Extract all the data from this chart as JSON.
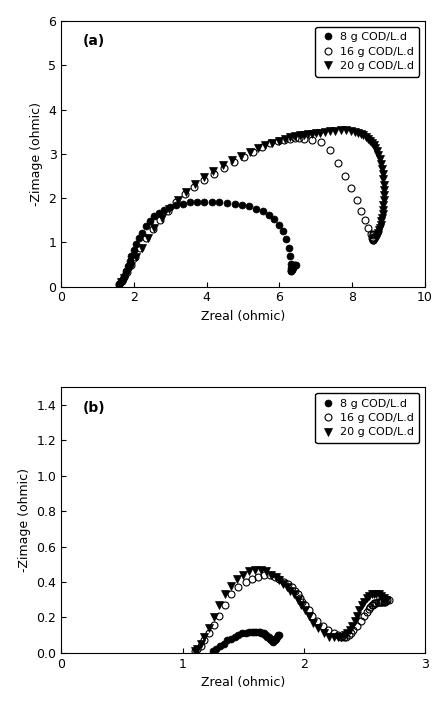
{
  "panel_a": {
    "label": "(a)",
    "xlabel": "Zreal (ohmic)",
    "ylabel": "-Zimage (ohmic)",
    "xlim": [
      0,
      10
    ],
    "ylim": [
      0,
      6
    ],
    "xticks": [
      0,
      2,
      4,
      6,
      8,
      10
    ],
    "yticks": [
      0,
      1,
      2,
      3,
      4,
      5,
      6
    ],
    "series": [
      {
        "label": "8 g COD/L.d",
        "marker": "o",
        "fillstyle": "full",
        "color": "black",
        "markersize": 5,
        "zreal": [
          1.58,
          1.62,
          1.66,
          1.7,
          1.74,
          1.78,
          1.83,
          1.88,
          1.93,
          1.99,
          2.06,
          2.13,
          2.22,
          2.32,
          2.43,
          2.55,
          2.68,
          2.83,
          2.99,
          3.16,
          3.34,
          3.53,
          3.73,
          3.93,
          4.14,
          4.35,
          4.56,
          4.77,
          4.97,
          5.17,
          5.36,
          5.54,
          5.71,
          5.86,
          5.99,
          6.1,
          6.19,
          6.26,
          6.3,
          6.32,
          6.33,
          6.32,
          6.32,
          6.33,
          6.35,
          6.37,
          6.39,
          6.41,
          6.43,
          6.45
        ],
        "zimag": [
          0.04,
          0.07,
          0.12,
          0.18,
          0.26,
          0.35,
          0.46,
          0.57,
          0.69,
          0.82,
          0.96,
          1.09,
          1.22,
          1.36,
          1.48,
          1.59,
          1.67,
          1.74,
          1.79,
          1.84,
          1.87,
          1.9,
          1.91,
          1.92,
          1.92,
          1.91,
          1.89,
          1.87,
          1.84,
          1.81,
          1.76,
          1.7,
          1.62,
          1.52,
          1.4,
          1.25,
          1.07,
          0.87,
          0.68,
          0.52,
          0.42,
          0.37,
          0.35,
          0.35,
          0.38,
          0.42,
          0.46,
          0.48,
          0.49,
          0.48
        ]
      },
      {
        "label": "16 g COD/L.d",
        "marker": "o",
        "fillstyle": "none",
        "color": "black",
        "markersize": 5,
        "zreal": [
          1.6,
          1.66,
          1.73,
          1.81,
          1.91,
          2.03,
          2.17,
          2.33,
          2.51,
          2.71,
          2.93,
          3.16,
          3.41,
          3.66,
          3.93,
          4.2,
          4.48,
          4.75,
          5.02,
          5.28,
          5.52,
          5.75,
          5.95,
          6.13,
          6.29,
          6.43,
          6.55,
          6.67,
          6.9,
          7.15,
          7.4,
          7.62,
          7.8,
          7.97,
          8.12,
          8.25,
          8.35,
          8.44,
          8.51,
          8.55,
          8.57,
          8.58,
          8.58,
          8.57,
          8.57,
          8.57,
          8.58
        ],
        "zimag": [
          0.06,
          0.12,
          0.21,
          0.33,
          0.49,
          0.67,
          0.88,
          1.09,
          1.3,
          1.51,
          1.71,
          1.9,
          2.08,
          2.24,
          2.4,
          2.54,
          2.68,
          2.81,
          2.93,
          3.05,
          3.16,
          3.25,
          3.3,
          3.32,
          3.34,
          3.35,
          3.35,
          3.34,
          3.32,
          3.27,
          3.08,
          2.8,
          2.5,
          2.22,
          1.95,
          1.7,
          1.5,
          1.32,
          1.18,
          1.1,
          1.05,
          1.05,
          1.07,
          1.1,
          1.13,
          1.16,
          1.18
        ]
      },
      {
        "label": "20 g COD/L.d",
        "marker": "v",
        "fillstyle": "full",
        "color": "black",
        "markersize": 6,
        "zreal": [
          1.63,
          1.72,
          1.82,
          1.93,
          2.06,
          2.21,
          2.38,
          2.56,
          2.76,
          2.97,
          3.2,
          3.43,
          3.68,
          3.93,
          4.18,
          4.44,
          4.69,
          4.94,
          5.18,
          5.4,
          5.61,
          5.8,
          5.98,
          6.14,
          6.29,
          6.43,
          6.56,
          6.68,
          6.79,
          6.89,
          7.0,
          7.12,
          7.25,
          7.39,
          7.54,
          7.69,
          7.83,
          7.96,
          8.07,
          8.16,
          8.24,
          8.31,
          8.38,
          8.44,
          8.49,
          8.54,
          8.59,
          8.64,
          8.68,
          8.72,
          8.76,
          8.79,
          8.82,
          8.84,
          8.86,
          8.87,
          8.87,
          8.87,
          8.87,
          8.86,
          8.85,
          8.84,
          8.82,
          8.8,
          8.78,
          8.76,
          8.74,
          8.72,
          8.7,
          8.68
        ],
        "zimag": [
          0.1,
          0.19,
          0.31,
          0.47,
          0.66,
          0.88,
          1.1,
          1.33,
          1.55,
          1.76,
          1.96,
          2.14,
          2.31,
          2.47,
          2.61,
          2.74,
          2.85,
          2.95,
          3.04,
          3.12,
          3.19,
          3.25,
          3.3,
          3.34,
          3.37,
          3.4,
          3.42,
          3.43,
          3.44,
          3.45,
          3.46,
          3.47,
          3.49,
          3.51,
          3.52,
          3.53,
          3.53,
          3.52,
          3.5,
          3.48,
          3.45,
          3.42,
          3.38,
          3.34,
          3.3,
          3.25,
          3.19,
          3.13,
          3.06,
          2.97,
          2.88,
          2.77,
          2.66,
          2.54,
          2.42,
          2.3,
          2.18,
          2.06,
          1.95,
          1.84,
          1.74,
          1.64,
          1.55,
          1.47,
          1.4,
          1.33,
          1.27,
          1.22,
          1.17,
          1.12
        ]
      }
    ]
  },
  "panel_b": {
    "label": "(b)",
    "xlabel": "Zreal (ohmic)",
    "ylabel": "-Zimage (ohmic)",
    "xlim": [
      0,
      3
    ],
    "ylim": [
      0,
      1.5
    ],
    "xticks": [
      0,
      1,
      2,
      3
    ],
    "yticks": [
      0.0,
      0.2,
      0.4,
      0.6,
      0.8,
      1.0,
      1.2,
      1.4
    ],
    "series": [
      {
        "label": "8 g COD/L.d",
        "marker": "o",
        "fillstyle": "full",
        "color": "black",
        "markersize": 5,
        "zreal": [
          1.25,
          1.28,
          1.31,
          1.34,
          1.37,
          1.4,
          1.43,
          1.46,
          1.49,
          1.52,
          1.55,
          1.57,
          1.59,
          1.61,
          1.63,
          1.64,
          1.65,
          1.66,
          1.67,
          1.68,
          1.69,
          1.7,
          1.71,
          1.72,
          1.73,
          1.73,
          1.74,
          1.74,
          1.75,
          1.76,
          1.77,
          1.78,
          1.79,
          1.8
        ],
        "zimag": [
          0.01,
          0.02,
          0.04,
          0.05,
          0.07,
          0.08,
          0.09,
          0.1,
          0.11,
          0.11,
          0.12,
          0.12,
          0.12,
          0.12,
          0.12,
          0.12,
          0.11,
          0.11,
          0.11,
          0.1,
          0.1,
          0.09,
          0.09,
          0.08,
          0.08,
          0.07,
          0.07,
          0.07,
          0.06,
          0.07,
          0.08,
          0.09,
          0.1,
          0.1
        ]
      },
      {
        "label": "16 g COD/L.d",
        "marker": "o",
        "fillstyle": "none",
        "color": "black",
        "markersize": 5,
        "zreal": [
          1.1,
          1.12,
          1.15,
          1.18,
          1.22,
          1.26,
          1.3,
          1.35,
          1.4,
          1.46,
          1.52,
          1.57,
          1.62,
          1.67,
          1.72,
          1.76,
          1.8,
          1.84,
          1.87,
          1.9,
          1.93,
          1.95,
          1.97,
          1.99,
          2.01,
          2.04,
          2.07,
          2.11,
          2.16,
          2.2,
          2.25,
          2.28,
          2.31,
          2.33,
          2.35,
          2.37,
          2.39,
          2.41,
          2.44,
          2.47,
          2.5,
          2.52,
          2.54,
          2.55,
          2.56,
          2.57,
          2.58,
          2.59,
          2.6,
          2.61,
          2.62,
          2.63,
          2.64,
          2.65,
          2.66,
          2.67,
          2.68,
          2.69,
          2.7
        ],
        "zimag": [
          0.01,
          0.02,
          0.04,
          0.07,
          0.11,
          0.16,
          0.21,
          0.27,
          0.33,
          0.37,
          0.4,
          0.42,
          0.43,
          0.44,
          0.44,
          0.43,
          0.42,
          0.4,
          0.39,
          0.37,
          0.35,
          0.33,
          0.31,
          0.29,
          0.27,
          0.24,
          0.21,
          0.18,
          0.15,
          0.13,
          0.11,
          0.1,
          0.09,
          0.09,
          0.09,
          0.1,
          0.11,
          0.13,
          0.15,
          0.18,
          0.21,
          0.23,
          0.25,
          0.26,
          0.27,
          0.27,
          0.28,
          0.28,
          0.28,
          0.29,
          0.29,
          0.29,
          0.29,
          0.29,
          0.29,
          0.29,
          0.3,
          0.3,
          0.3
        ]
      },
      {
        "label": "20 g COD/L.d",
        "marker": "v",
        "fillstyle": "full",
        "color": "black",
        "markersize": 6,
        "zreal": [
          1.1,
          1.12,
          1.15,
          1.18,
          1.22,
          1.26,
          1.3,
          1.35,
          1.4,
          1.45,
          1.5,
          1.55,
          1.6,
          1.65,
          1.69,
          1.73,
          1.77,
          1.8,
          1.83,
          1.86,
          1.89,
          1.92,
          1.95,
          1.98,
          2.01,
          2.04,
          2.08,
          2.12,
          2.17,
          2.21,
          2.25,
          2.28,
          2.31,
          2.34,
          2.36,
          2.38,
          2.4,
          2.42,
          2.44,
          2.46,
          2.48,
          2.5,
          2.52,
          2.54,
          2.56,
          2.58,
          2.6,
          2.62,
          2.64,
          2.66,
          2.68
        ],
        "zimag": [
          0.01,
          0.02,
          0.05,
          0.09,
          0.14,
          0.2,
          0.27,
          0.33,
          0.38,
          0.42,
          0.44,
          0.46,
          0.47,
          0.47,
          0.46,
          0.44,
          0.43,
          0.41,
          0.39,
          0.37,
          0.35,
          0.33,
          0.3,
          0.27,
          0.24,
          0.21,
          0.17,
          0.14,
          0.11,
          0.09,
          0.09,
          0.09,
          0.09,
          0.1,
          0.11,
          0.13,
          0.15,
          0.18,
          0.21,
          0.24,
          0.27,
          0.29,
          0.31,
          0.32,
          0.33,
          0.33,
          0.33,
          0.33,
          0.32,
          0.31,
          0.3
        ]
      }
    ]
  },
  "background_color": "#ffffff",
  "text_color": "#000000",
  "font_size": 9,
  "legend_fontsize": 8
}
